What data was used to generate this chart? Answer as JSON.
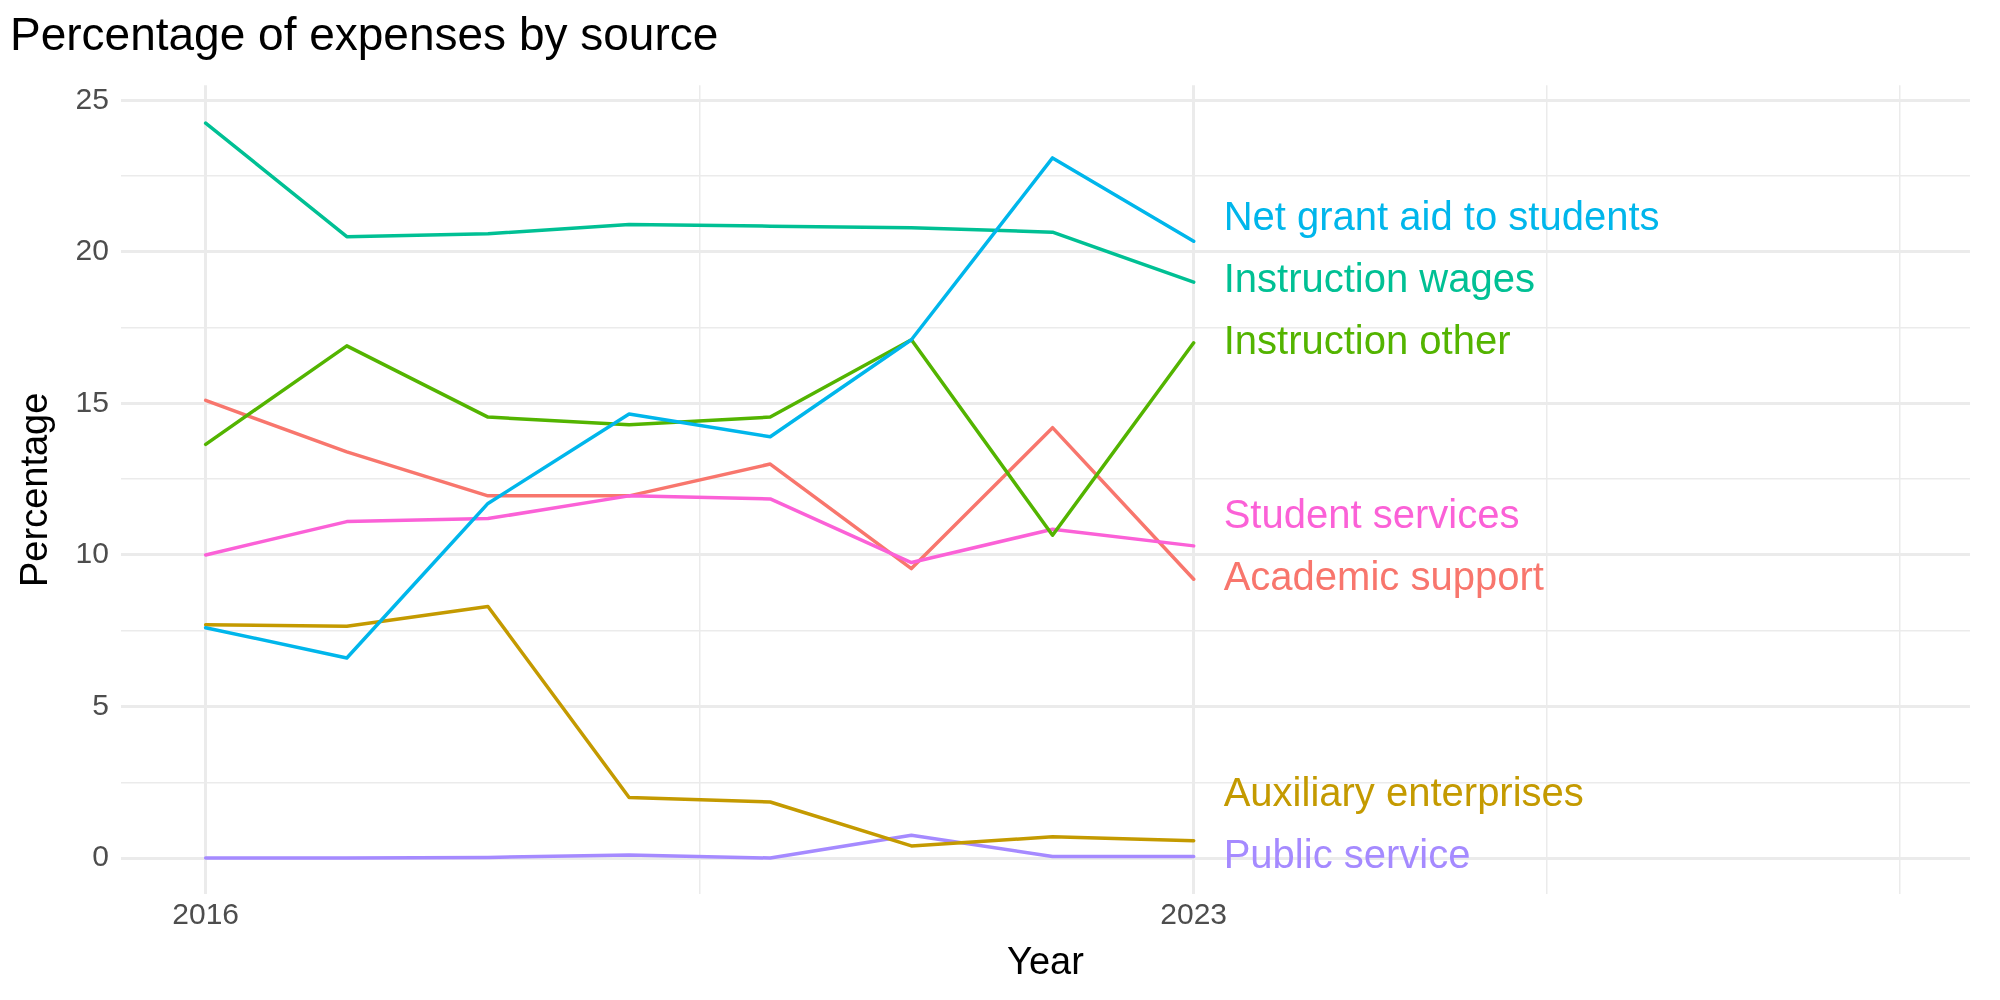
{
  "chart_data": {
    "type": "line",
    "title": "Percentage of expenses by source",
    "xlabel": "Year",
    "ylabel": "Percentage",
    "x": [
      2016,
      2017,
      2018,
      2019,
      2020,
      2021,
      2022,
      2023
    ],
    "series": [
      {
        "name": "Net grant aid to students",
        "color": "#00b6eb",
        "values": [
          7.6,
          6.6,
          11.7,
          14.65,
          13.9,
          17.1,
          23.1,
          20.35
        ]
      },
      {
        "name": "Instruction wages",
        "color": "#00c094",
        "values": [
          24.25,
          20.5,
          20.6,
          20.9,
          20.85,
          20.8,
          20.65,
          19.0
        ]
      },
      {
        "name": "Instruction other",
        "color": "#53b400",
        "values": [
          13.65,
          16.9,
          14.55,
          14.3,
          14.55,
          17.1,
          10.65,
          17.0
        ]
      },
      {
        "name": "Student services",
        "color": "#fb61d7",
        "values": [
          10.0,
          11.1,
          11.2,
          11.95,
          11.85,
          9.75,
          10.85,
          10.3
        ]
      },
      {
        "name": "Academic support",
        "color": "#f8766d",
        "values": [
          15.1,
          13.4,
          11.95,
          11.95,
          13.0,
          9.55,
          14.2,
          9.2
        ]
      },
      {
        "name": "Auxiliary enterprises",
        "color": "#c49a00",
        "values": [
          7.7,
          7.65,
          8.3,
          2.0,
          1.85,
          0.4,
          0.7,
          0.57
        ]
      },
      {
        "name": "Public service",
        "color": "#a58aff",
        "values": [
          0,
          0,
          0.02,
          0.1,
          0,
          0.75,
          0.05,
          0.05
        ]
      }
    ],
    "xlim": [
      2015.4,
      2028.5
    ],
    "xticks": [
      2016,
      {
        "value": 2019.5,
        "label": null
      },
      2023,
      {
        "value": 2025.5,
        "label": null
      },
      {
        "value": 2028,
        "label": null
      }
    ],
    "ylim": [
      -1.2,
      25.5
    ],
    "yticks": [
      0,
      {
        "value": 2.5,
        "label": null
      },
      5,
      {
        "value": 7.5,
        "label": null
      },
      10,
      {
        "value": 12.5,
        "label": null
      },
      15,
      {
        "value": 17.5,
        "label": null
      },
      20,
      {
        "value": 22.5,
        "label": null
      },
      25
    ],
    "grid": true,
    "legend": false,
    "marker": "none",
    "line_style": "solid"
  }
}
